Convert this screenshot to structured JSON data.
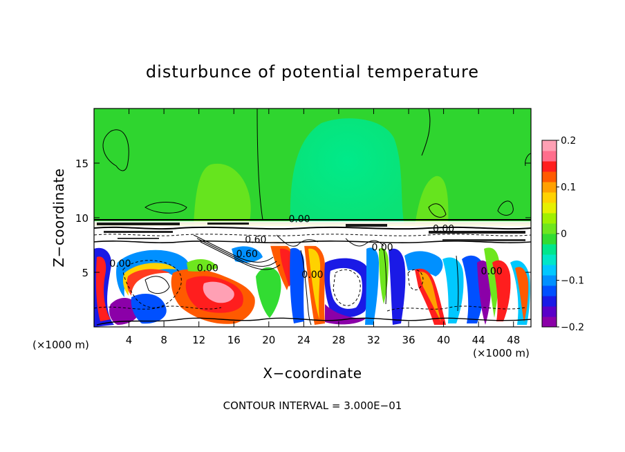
{
  "chart_data": {
    "type": "heatmap",
    "title": "disturbunce of potential temperature",
    "xlabel": "X−coordinate",
    "ylabel": "Z−coordinate",
    "x_unit_left": "(×1000 m)",
    "x_unit_right": "(×1000 m)",
    "footer": "CONTOUR INTERVAL = 3.000E−01",
    "xlim": [
      0,
      50
    ],
    "ylim": [
      0,
      20
    ],
    "x_ticks": [
      4,
      8,
      12,
      16,
      20,
      24,
      28,
      32,
      36,
      40,
      44,
      48
    ],
    "y_ticks": [
      5,
      10,
      15
    ],
    "colorbar": {
      "range": [
        -0.2,
        0.2
      ],
      "ticks": [
        {
          "value": 0.2,
          "label": "0.2"
        },
        {
          "value": 0.1,
          "label": "0.1"
        },
        {
          "value": 0.0,
          "label": "0"
        },
        {
          "value": -0.1,
          "label": "−0.1"
        },
        {
          "value": -0.2,
          "label": "−0.2"
        }
      ],
      "colors": [
        "#8b00a8",
        "#5a00c8",
        "#1a1ae6",
        "#0050ff",
        "#0090ff",
        "#00c8ff",
        "#00e6c8",
        "#00e68c",
        "#32dc32",
        "#6ee61e",
        "#a0f000",
        "#e6f000",
        "#ffd200",
        "#ffa000",
        "#ff5a00",
        "#ff1e1e",
        "#ff6e8c",
        "#ffa0b4"
      ]
    },
    "contour_labels": [
      {
        "x": 23.5,
        "z": 9.6,
        "text": "0.00"
      },
      {
        "x": 18.5,
        "z": 7.7,
        "text": "0.60"
      },
      {
        "x": 17.5,
        "z": 6.4,
        "text": "0.60"
      },
      {
        "x": 13.0,
        "z": 5.1,
        "text": "0.00"
      },
      {
        "x": 3.0,
        "z": 5.5,
        "text": "0.00"
      },
      {
        "x": 25.0,
        "z": 4.5,
        "text": "0.00"
      },
      {
        "x": 33.0,
        "z": 7.0,
        "text": "0.00"
      },
      {
        "x": 40.0,
        "z": 8.7,
        "text": "0.00"
      },
      {
        "x": 45.5,
        "z": 4.8,
        "text": "0.00"
      }
    ]
  }
}
